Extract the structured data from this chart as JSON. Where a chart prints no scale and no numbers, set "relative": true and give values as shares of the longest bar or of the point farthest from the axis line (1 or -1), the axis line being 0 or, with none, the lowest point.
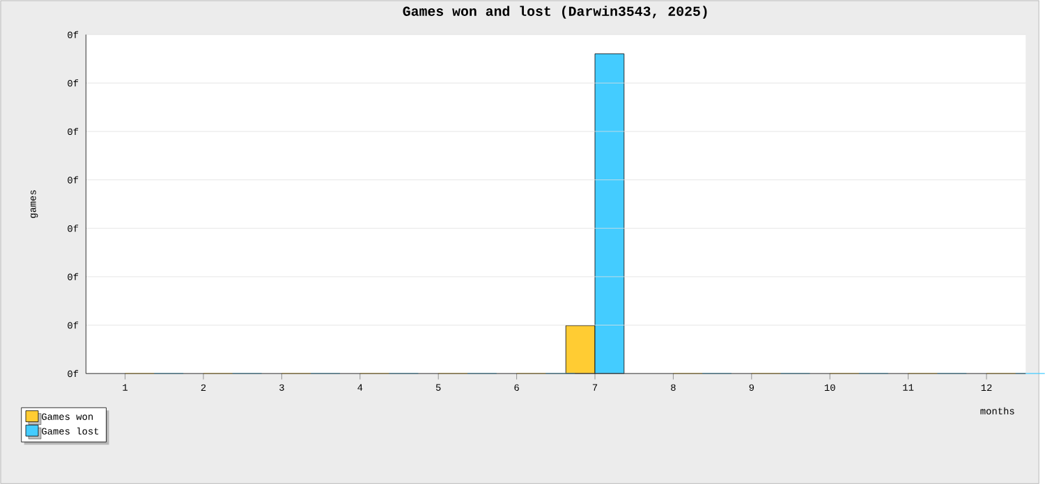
{
  "chart_data": {
    "type": "bar",
    "title": "Games won and lost (Darwin3543, 2025)",
    "xlabel": "months",
    "ylabel": "games",
    "relative": true,
    "categories": [
      "1",
      "2",
      "3",
      "4",
      "5",
      "6",
      "7",
      "8",
      "9",
      "10",
      "11",
      "12"
    ],
    "series": [
      {
        "name": "Games won",
        "color": "#ffcc33",
        "values": [
          0,
          0,
          0,
          0,
          0,
          0,
          0.15,
          0,
          0,
          0,
          0,
          0
        ]
      },
      {
        "name": "Games lost",
        "color": "#44ccff",
        "values": [
          0,
          0,
          0,
          0,
          0,
          0,
          1,
          0,
          0,
          0,
          0,
          0
        ]
      }
    ],
    "annotations": [
      "0f",
      "0f",
      "0f",
      "0f",
      "0f",
      "0f",
      "0f",
      "0f"
    ],
    "grid": "y",
    "legend": "bottom left"
  }
}
